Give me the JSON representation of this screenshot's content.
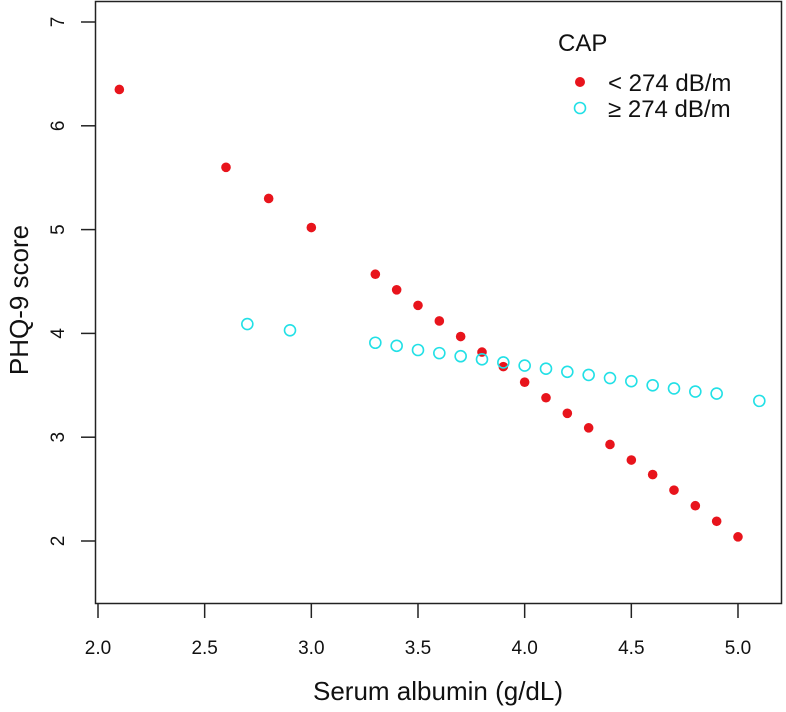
{
  "chart_data": {
    "type": "scatter",
    "xlabel": "Serum albumin (g/dL)",
    "ylabel": "PHQ-9 score",
    "xlim": [
      1.99,
      5.22
    ],
    "ylim": [
      1.7,
      7.2
    ],
    "xticks": [
      "2.0",
      "2.5",
      "3.0",
      "3.5",
      "4.0",
      "4.5",
      "5.0"
    ],
    "yticks": [
      "2",
      "3",
      "4",
      "5",
      "6",
      "7"
    ],
    "grid": false,
    "legend": {
      "title": "CAP",
      "placement": "top-right"
    },
    "series": [
      {
        "name": "< 274 dB/m",
        "marker": "filled-circle",
        "color": "#e8141c",
        "x": [
          2.1,
          2.6,
          2.8,
          3.0,
          3.3,
          3.4,
          3.5,
          3.6,
          3.7,
          3.8,
          3.9,
          4.0,
          4.1,
          4.2,
          4.3,
          4.4,
          4.5,
          4.6,
          4.7,
          4.8,
          4.9,
          5.0
        ],
        "y": [
          6.35,
          5.6,
          5.3,
          5.02,
          4.57,
          4.42,
          4.27,
          4.12,
          3.97,
          3.82,
          3.68,
          3.53,
          3.38,
          3.23,
          3.09,
          2.93,
          2.78,
          2.64,
          2.49,
          2.34,
          2.19,
          2.04
        ]
      },
      {
        "name": "≥ 274 dB/m",
        "marker": "open-circle",
        "color": "#22e0e6",
        "x": [
          2.7,
          2.9,
          3.3,
          3.4,
          3.5,
          3.6,
          3.7,
          3.8,
          3.9,
          4.0,
          4.1,
          4.2,
          4.3,
          4.4,
          4.5,
          4.6,
          4.7,
          4.8,
          4.9,
          5.1
        ],
        "y": [
          4.09,
          4.03,
          3.91,
          3.88,
          3.84,
          3.81,
          3.78,
          3.75,
          3.72,
          3.69,
          3.66,
          3.63,
          3.6,
          3.57,
          3.54,
          3.5,
          3.47,
          3.44,
          3.42,
          3.35
        ]
      }
    ]
  }
}
